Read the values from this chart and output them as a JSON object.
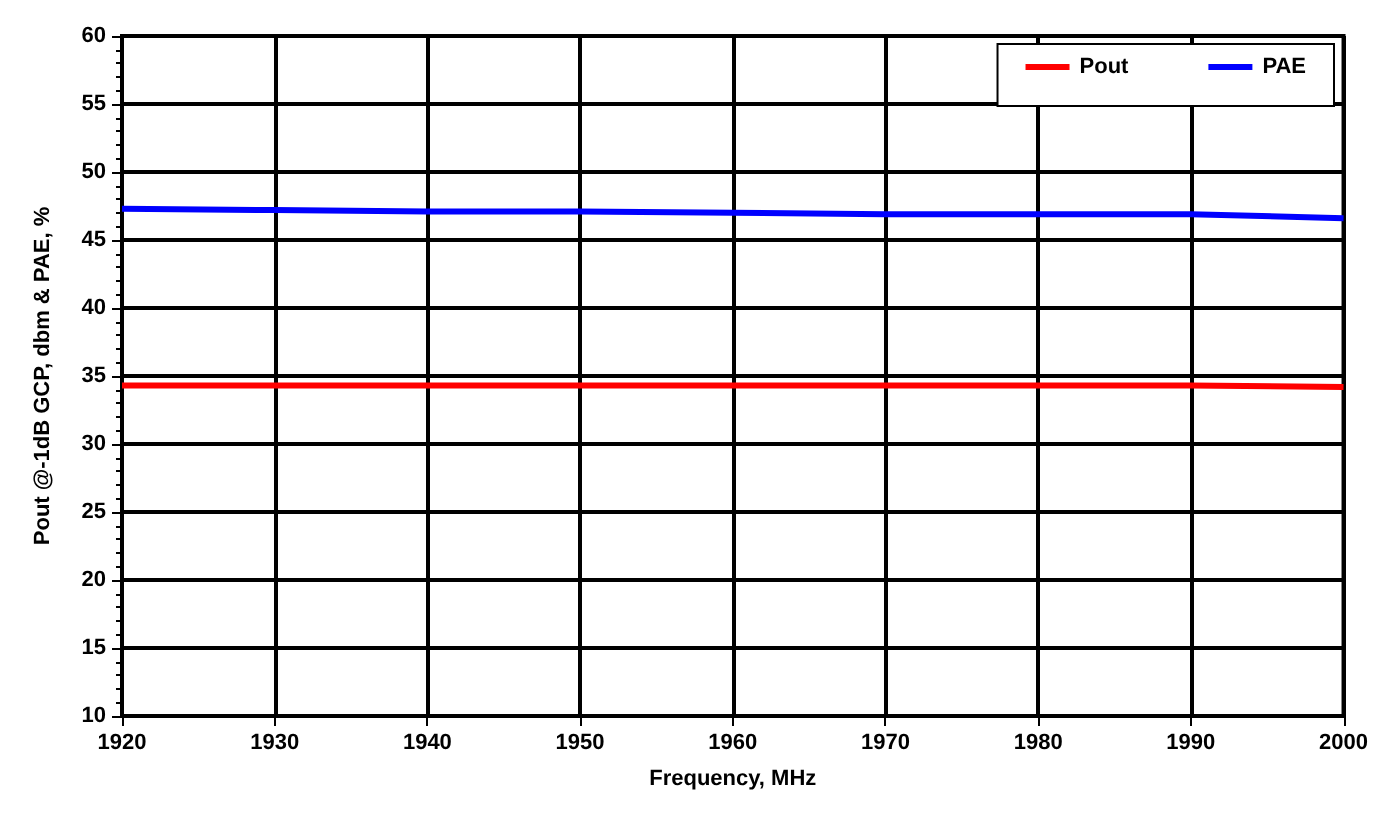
{
  "chart_data": {
    "type": "line",
    "xlabel": "Frequency, MHz",
    "ylabel": "Pout @-1dB GCP, dbm & PAE, %",
    "x": [
      1920,
      1930,
      1940,
      1950,
      1960,
      1970,
      1980,
      1990,
      2000
    ],
    "series": [
      {
        "name": "Pout",
        "color": "#ff0000",
        "values": [
          34.3,
          34.3,
          34.3,
          34.3,
          34.3,
          34.3,
          34.3,
          34.3,
          34.2
        ]
      },
      {
        "name": "PAE",
        "color": "#0000ff",
        "values": [
          47.3,
          47.2,
          47.1,
          47.1,
          47.0,
          46.9,
          46.9,
          46.9,
          46.6
        ]
      }
    ],
    "xlim": [
      1920,
      2000
    ],
    "xticks": [
      1920,
      1930,
      1940,
      1950,
      1960,
      1970,
      1980,
      1990,
      2000
    ],
    "ylim": [
      10,
      60
    ],
    "yticks": [
      10,
      15,
      20,
      25,
      30,
      35,
      40,
      45,
      50,
      55,
      60
    ],
    "grid": true,
    "legend": "top right",
    "marker": "none",
    "line_style": "solid"
  }
}
